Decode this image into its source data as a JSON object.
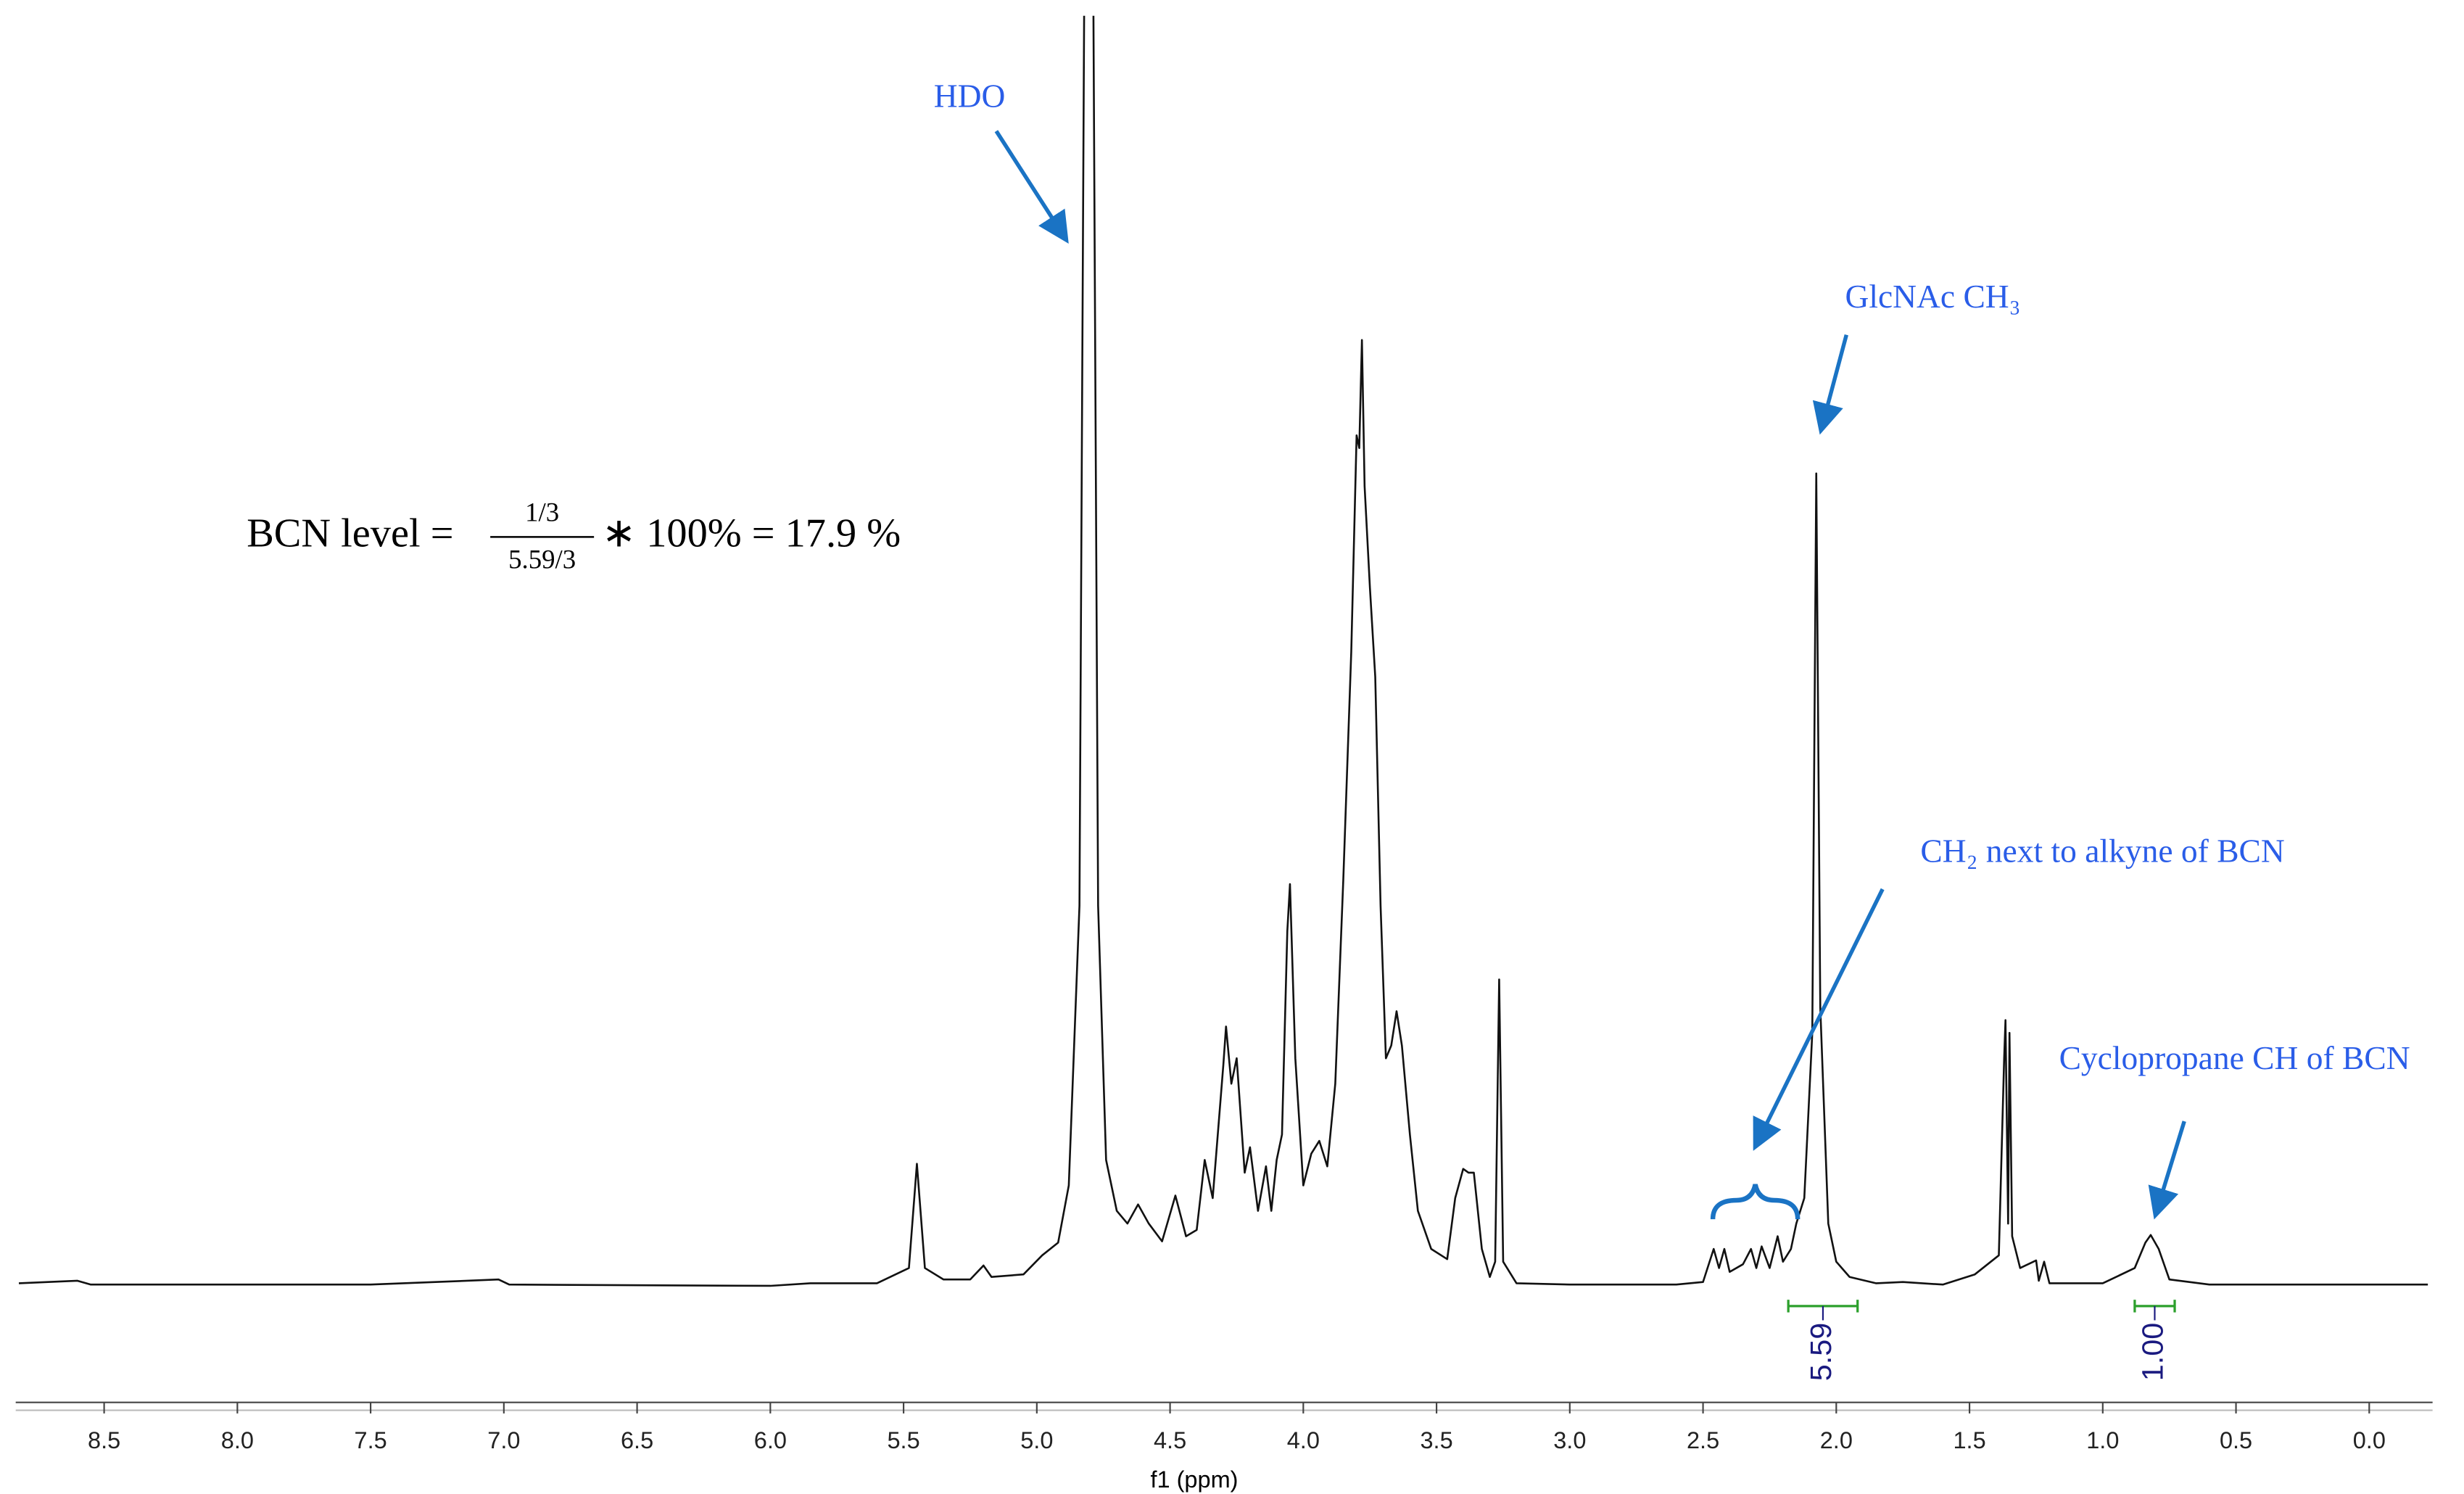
{
  "chart_data": {
    "type": "line",
    "x_label": "f1 (ppm)",
    "xlim": [
      8.82,
      -0.22
    ],
    "ylim": [
      0,
      100
    ],
    "xticks": [
      8.5,
      {
        "value": 8,
        "label": "8.0"
      },
      7.5,
      {
        "value": 7,
        "label": "7.0"
      },
      6.5,
      {
        "value": 6,
        "label": "6.0"
      },
      5.5,
      {
        "value": 5,
        "label": "5.0"
      },
      4.5,
      {
        "value": 4,
        "label": "4.0"
      },
      3.5,
      {
        "value": 3,
        "label": "3.0"
      },
      2.5,
      {
        "value": 2,
        "label": "2.0"
      },
      1.5,
      {
        "value": 1,
        "label": "1.0"
      },
      0.5,
      {
        "value": 0,
        "label": "0.0"
      }
    ],
    "x": [
      8.82,
      8.6,
      8.55,
      7.5,
      7.02,
      6.98,
      6.0,
      5.85,
      5.6,
      5.48,
      5.45,
      5.42,
      5.35,
      5.25,
      5.2,
      5.17,
      5.05,
      4.98,
      4.92,
      4.88,
      4.84,
      4.82,
      4.79,
      4.77,
      4.74,
      4.7,
      4.66,
      4.62,
      4.58,
      4.53,
      4.48,
      4.44,
      4.4,
      4.37,
      4.34,
      4.3,
      4.29,
      4.27,
      4.25,
      4.22,
      4.2,
      4.17,
      4.14,
      4.12,
      4.1,
      4.08,
      4.06,
      4.05,
      4.03,
      4.0,
      3.97,
      3.94,
      3.91,
      3.88,
      3.85,
      3.82,
      3.8,
      3.79,
      3.78,
      3.77,
      3.75,
      3.73,
      3.71,
      3.69,
      3.67,
      3.65,
      3.63,
      3.6,
      3.57,
      3.52,
      3.46,
      3.43,
      3.4,
      3.38,
      3.36,
      3.33,
      3.3,
      3.28,
      3.265,
      3.25,
      3.2,
      3.0,
      2.6,
      2.5,
      2.46,
      2.44,
      2.42,
      2.4,
      2.35,
      2.32,
      2.3,
      2.28,
      2.25,
      2.22,
      2.2,
      2.17,
      2.15,
      2.12,
      2.09,
      2.075,
      2.06,
      2.03,
      2.0,
      1.95,
      1.85,
      1.75,
      1.6,
      1.48,
      1.42,
      1.39,
      1.37,
      1.365,
      1.355,
      1.35,
      1.34,
      1.31,
      1.25,
      1.24,
      1.22,
      1.2,
      1.0,
      0.88,
      0.84,
      0.82,
      0.79,
      0.75,
      0.6,
      0.3,
      -0.22
    ],
    "series": [
      {
        "color": "#111111",
        "values": [
          0.3,
          0.5,
          0.2,
          0.2,
          0.6,
          0.2,
          0.1,
          0.3,
          0.3,
          1.5,
          9.7,
          1.5,
          0.6,
          0.6,
          1.7,
          0.8,
          1.0,
          2.5,
          3.5,
          8,
          30,
          110,
          110,
          30,
          10,
          6,
          5,
          6.5,
          5,
          3.6,
          7.2,
          4,
          4.5,
          10,
          7,
          17.5,
          20.5,
          16,
          18,
          9,
          11,
          6,
          9.5,
          6,
          10,
          12,
          28,
          31.7,
          18,
          8,
          10.5,
          11.5,
          9.5,
          16,
          32,
          50,
          67,
          66,
          74.5,
          63,
          55,
          48,
          30,
          18,
          19,
          21.7,
          19,
          12,
          6,
          3,
          2.2,
          7,
          9.3,
          9,
          9,
          3,
          0.8,
          2,
          24.2,
          2,
          0.3,
          0.2,
          0.2,
          0.4,
          3,
          1.5,
          3,
          1.2,
          1.8,
          3,
          1.5,
          3.2,
          1.5,
          4,
          2,
          3,
          5,
          7,
          20,
          64,
          22,
          5,
          2,
          0.8,
          0.3,
          0.4,
          0.2,
          1,
          2,
          2.5,
          18,
          21,
          5,
          20,
          4,
          1.5,
          2.1,
          0.5,
          2,
          0.3,
          0.3,
          1.5,
          3.5,
          4.1,
          3,
          0.6,
          0.2,
          0.2,
          0.2
        ]
      }
    ],
    "integrals": [
      {
        "range": [
          2.18,
          1.92
        ],
        "label": "5.59"
      },
      {
        "range": [
          0.88,
          0.73
        ],
        "label": "1.00"
      }
    ],
    "annotations": [
      "HDO",
      "GlcNAc CH₃",
      "CH₂ next to alkyne of BCN",
      "Cyclopropane CH of BCN"
    ],
    "formula": {
      "lhs": "BCN level =",
      "numerator": "1/3",
      "denominator": "5.59/3",
      "rhs": "∗ 100% = 17.9 %"
    }
  }
}
